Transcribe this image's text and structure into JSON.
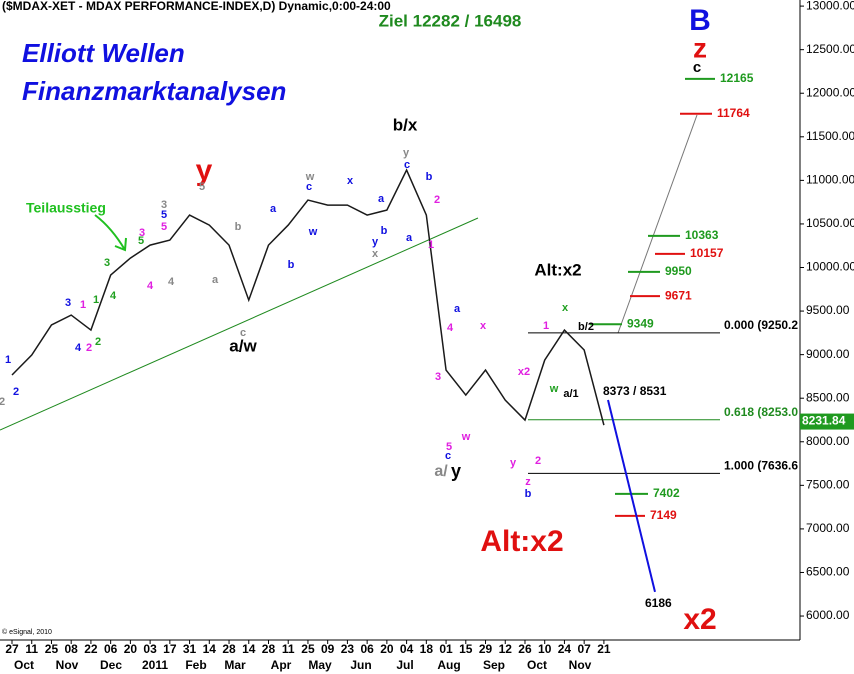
{
  "chart_data": {
    "type": "line",
    "title": "($MDAX-XET - MDAX PERFORMANCE-INDEX,D) Dynamic,0:00-24:00",
    "subtitle": "Ziel 12282 / 16498",
    "brand_line1": "Elliott Wellen",
    "brand_line2": "Finanzmarktanalysen",
    "copyright": "© eSignal, 2010",
    "categories": [
      "27",
      "11",
      "25",
      "08",
      "22",
      "06",
      "20",
      "03",
      "17",
      "31",
      "14",
      "28",
      "14",
      "28",
      "11",
      "25",
      "09",
      "23",
      "06",
      "20",
      "04",
      "18",
      "01",
      "15",
      "29",
      "12",
      "26",
      "10",
      "24",
      "07",
      "21"
    ],
    "months": [
      "Oct",
      "Nov",
      "Dec",
      "2011",
      "Feb",
      "Mar",
      "Apr",
      "May",
      "Jun",
      "Jul",
      "Aug",
      "Sep",
      "Oct",
      "Nov"
    ],
    "series": [
      {
        "name": "MDAX",
        "color": "#1a1a1a",
        "values": [
          8766,
          8995,
          9340,
          9454,
          9282,
          9913,
          10108,
          10257,
          10315,
          10602,
          10487,
          10257,
          9626,
          10257,
          10487,
          10774,
          10716,
          10716,
          10602,
          10659,
          11118,
          10602,
          8823,
          8536,
          8823,
          8478,
          8249,
          8937,
          9282,
          9053,
          8191
        ]
      }
    ],
    "ylim": [
      5725,
      13070
    ],
    "yticks": [
      {
        "value": 6000,
        "label": "6000.00"
      },
      {
        "value": 6500,
        "label": "6500.00"
      },
      {
        "value": 7000,
        "label": "7000.00"
      },
      {
        "value": 7500,
        "label": "7500.00"
      },
      {
        "value": 8000,
        "label": "8000.00"
      },
      {
        "value": 8500,
        "label": "8500.00"
      },
      {
        "value": 9000,
        "label": "9000.00"
      },
      {
        "value": 9500,
        "label": "9500.00"
      },
      {
        "value": 10000,
        "label": "10000.00"
      },
      {
        "value": 10500,
        "label": "10500.00"
      },
      {
        "value": 11000,
        "label": "11000.00"
      },
      {
        "value": 11500,
        "label": "11500.00"
      },
      {
        "value": 12000,
        "label": "12000.00"
      },
      {
        "value": 12500,
        "label": "12500.00"
      },
      {
        "value": 13000,
        "label": "13000.00"
      }
    ],
    "last_price": 8231.84,
    "fib_levels": [
      {
        "value": 9250.2,
        "label": "0.000 (9250.2"
      },
      {
        "value": 8253.0,
        "label": "0.618 (8253.0"
      },
      {
        "value": 7636.6,
        "label": "1.000 (7636.6"
      }
    ],
    "targets": [
      {
        "value": 12165,
        "color": "#1f9a1f"
      },
      {
        "value": 11764,
        "color": "#e01010"
      },
      {
        "value": 10363,
        "color": "#1f9a1f"
      },
      {
        "value": 10157,
        "color": "#e01010"
      },
      {
        "value": 9950,
        "color": "#1f9a1f"
      },
      {
        "value": 9671,
        "color": "#e01010"
      },
      {
        "value": 9349,
        "color": "#1f9a1f"
      },
      {
        "value": 7402,
        "color": "#1f9a1f"
      },
      {
        "value": 7149,
        "color": "#e01010"
      }
    ],
    "projection": 6186,
    "big_labels": [
      "B",
      "z",
      "c",
      "y",
      "b/x",
      "Teilausstieg",
      "Alt:x2",
      "a/w",
      "a/",
      "y",
      "Alt:x2",
      "x2",
      "8373 / 8531"
    ],
    "annotations": [
      {
        "text": "1",
        "color": "#1010e0"
      },
      {
        "text": "2",
        "color": "#1010e0"
      },
      {
        "text": "2",
        "color": "#888"
      },
      {
        "text": "3",
        "color": "#1010e0"
      },
      {
        "text": "1",
        "color": "#e020e0"
      },
      {
        "text": "4",
        "color": "#1010e0"
      },
      {
        "text": "2",
        "color": "#e020e0"
      },
      {
        "text": "2",
        "color": "#20a020"
      },
      {
        "text": "1",
        "color": "#20a020"
      },
      {
        "text": "3",
        "color": "#20a020"
      },
      {
        "text": "4",
        "color": "#20a020"
      },
      {
        "text": "5",
        "color": "#20a020"
      },
      {
        "text": "3",
        "color": "#e020e0"
      },
      {
        "text": "4",
        "color": "#e020e0"
      },
      {
        "text": "3",
        "color": "#888"
      },
      {
        "text": "5",
        "color": "#1010e0"
      },
      {
        "text": "5",
        "color": "#e020e0"
      },
      {
        "text": "4",
        "color": "#888"
      },
      {
        "text": "5",
        "color": "#888"
      },
      {
        "text": "a",
        "color": "#888"
      },
      {
        "text": "b",
        "color": "#888"
      },
      {
        "text": "c",
        "color": "#888"
      },
      {
        "text": "a",
        "color": "#1010e0"
      },
      {
        "text": "b",
        "color": "#1010e0"
      },
      {
        "text": "w",
        "color": "#888"
      },
      {
        "text": "c",
        "color": "#1010e0"
      },
      {
        "text": "w",
        "color": "#1010e0"
      },
      {
        "text": "x",
        "color": "#1010e0"
      },
      {
        "text": "a",
        "color": "#1010e0"
      },
      {
        "text": "b",
        "color": "#1010e0"
      },
      {
        "text": "y",
        "color": "#1010e0"
      },
      {
        "text": "x",
        "color": "#888"
      },
      {
        "text": "y",
        "color": "#888"
      },
      {
        "text": "c",
        "color": "#1010e0"
      },
      {
        "text": "b",
        "color": "#1010e0"
      },
      {
        "text": "a",
        "color": "#1010e0"
      },
      {
        "text": "2",
        "color": "#e020e0"
      },
      {
        "text": "1",
        "color": "#e020e0"
      },
      {
        "text": "a",
        "color": "#1010e0"
      },
      {
        "text": "4",
        "color": "#e020e0"
      },
      {
        "text": "x",
        "color": "#e020e0"
      },
      {
        "text": "3",
        "color": "#e020e0"
      },
      {
        "text": "w",
        "color": "#e020e0"
      },
      {
        "text": "5",
        "color": "#e020e0"
      },
      {
        "text": "c",
        "color": "#1010e0"
      },
      {
        "text": "x2",
        "color": "#e020e0"
      },
      {
        "text": "y",
        "color": "#e020e0"
      },
      {
        "text": "2",
        "color": "#e020e0"
      },
      {
        "text": "z",
        "color": "#e020e0"
      },
      {
        "text": "b",
        "color": "#1010e0"
      },
      {
        "text": "1",
        "color": "#e020e0"
      },
      {
        "text": "x",
        "color": "#20a020"
      },
      {
        "text": "w",
        "color": "#20a020"
      },
      {
        "text": "a/1",
        "color": "#000"
      },
      {
        "text": "b/2",
        "color": "#000"
      }
    ]
  }
}
